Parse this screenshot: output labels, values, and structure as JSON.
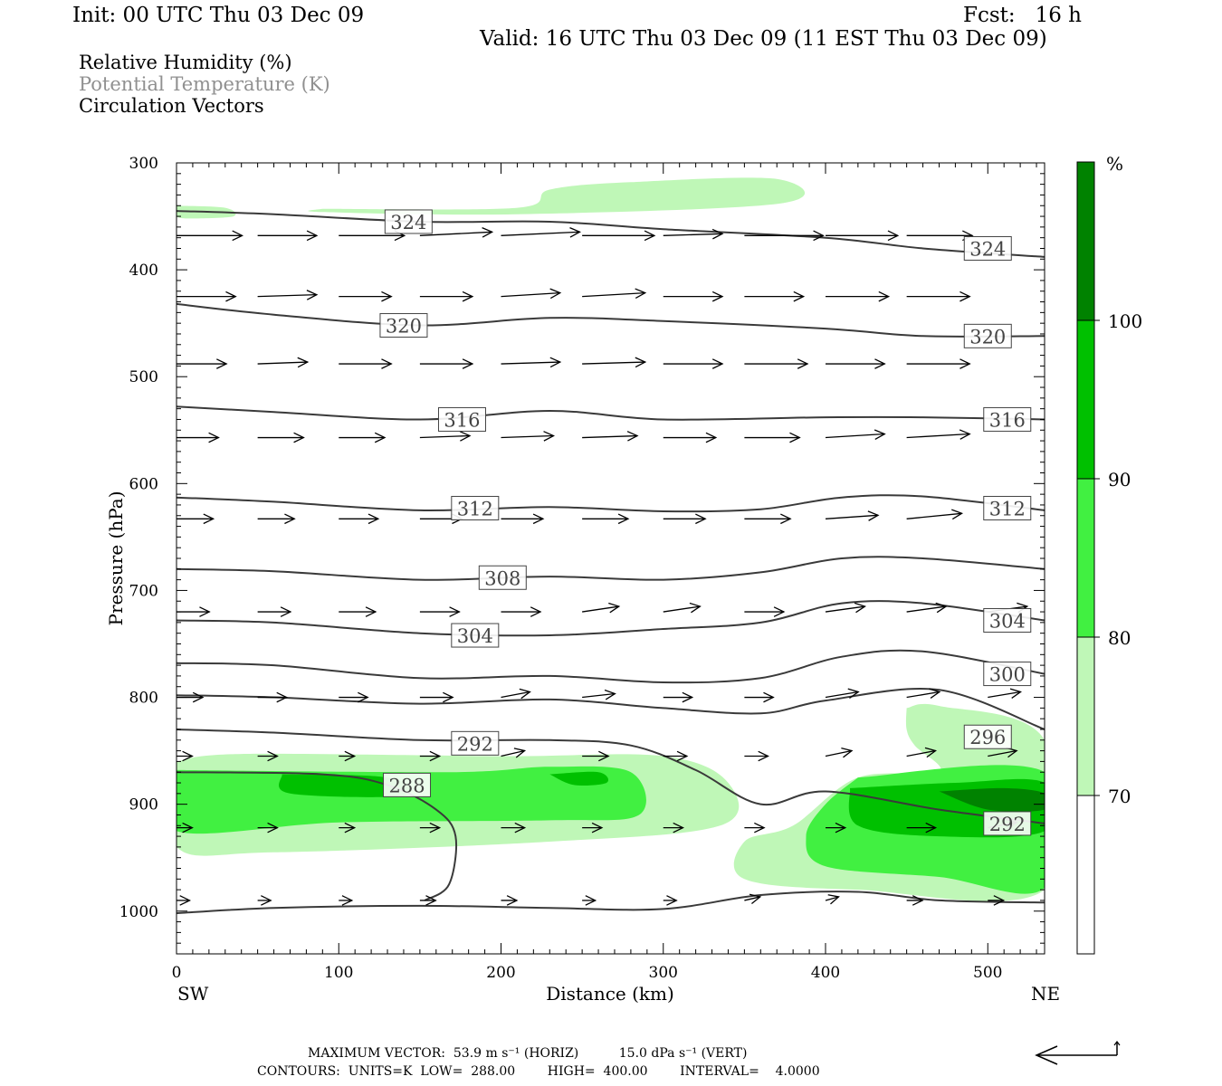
{
  "header": {
    "init": "Init: 00 UTC Thu 03 Dec 09",
    "fcst": "Fcst:   16 h",
    "valid": "Valid: 16 UTC Thu 03 Dec 09 (11 EST Thu 03 Dec 09)"
  },
  "legend": {
    "rh": "Relative Humidity (%)",
    "pt": "Potential Temperature (K)",
    "cv": "Circulation Vectors"
  },
  "footer": {
    "max_vector": "MAXIMUM VECTOR:  53.9 m s⁻¹ (HORIZ)          15.0 dPa s⁻¹ (VERT)",
    "contours": "CONTOURS:  UNITS=K  LOW=  288.00        HIGH=  400.00        INTERVAL=    4.0000"
  },
  "colors": {
    "rh_70_80": "#bff7b7",
    "rh_80_90": "#41f041",
    "rh_90_100": "#00c000",
    "rh_100": "#008200",
    "theta_line": "#3a3a3a",
    "vector": "#000000",
    "legend_gray": "#909090"
  },
  "chart_data": {
    "type": "cross-section",
    "xlabel": "Distance (km)",
    "ylabel": "Pressure (hPa)",
    "xlim": [
      0,
      535
    ],
    "ylim": [
      1040,
      300
    ],
    "x_ticks": [
      0,
      100,
      200,
      300,
      400,
      500
    ],
    "y_ticks": [
      300,
      400,
      500,
      600,
      700,
      800,
      900,
      1000
    ],
    "endpoints": {
      "left": "SW",
      "right": "NE"
    },
    "colorbar": {
      "unit": "%",
      "levels": [
        70,
        80,
        90,
        100
      ],
      "colors": [
        "#ffffff",
        "#bff7b7",
        "#41f041",
        "#00c000",
        "#008200"
      ]
    },
    "theta_contours": [
      {
        "label": "324",
        "points": [
          [
            0,
            345
          ],
          [
            60,
            348
          ],
          [
            150,
            355
          ],
          [
            230,
            355
          ],
          [
            300,
            362
          ],
          [
            400,
            370
          ],
          [
            460,
            380
          ],
          [
            535,
            388
          ]
        ]
      },
      {
        "label": "320",
        "points": [
          [
            0,
            432
          ],
          [
            60,
            442
          ],
          [
            150,
            452
          ],
          [
            230,
            445
          ],
          [
            300,
            448
          ],
          [
            400,
            455
          ],
          [
            460,
            462
          ],
          [
            535,
            462
          ]
        ]
      },
      {
        "label": "316",
        "points": [
          [
            0,
            528
          ],
          [
            60,
            533
          ],
          [
            150,
            540
          ],
          [
            230,
            532
          ],
          [
            300,
            540
          ],
          [
            400,
            538
          ],
          [
            460,
            538
          ],
          [
            535,
            540
          ]
        ]
      },
      {
        "label": "312",
        "points": [
          [
            0,
            613
          ],
          [
            60,
            617
          ],
          [
            150,
            625
          ],
          [
            230,
            622
          ],
          [
            300,
            626
          ],
          [
            360,
            624
          ],
          [
            410,
            613
          ],
          [
            460,
            612
          ],
          [
            535,
            625
          ]
        ]
      },
      {
        "label": "308",
        "points": [
          [
            0,
            680
          ],
          [
            60,
            682
          ],
          [
            150,
            690
          ],
          [
            230,
            687
          ],
          [
            300,
            690
          ],
          [
            360,
            683
          ],
          [
            410,
            670
          ],
          [
            460,
            670
          ],
          [
            535,
            680
          ]
        ]
      },
      {
        "label": "304",
        "points": [
          [
            0,
            728
          ],
          [
            60,
            730
          ],
          [
            150,
            740
          ],
          [
            230,
            742
          ],
          [
            300,
            736
          ],
          [
            360,
            730
          ],
          [
            410,
            712
          ],
          [
            460,
            712
          ],
          [
            535,
            728
          ]
        ]
      },
      {
        "label": "300",
        "points": [
          [
            0,
            768
          ],
          [
            60,
            770
          ],
          [
            150,
            782
          ],
          [
            230,
            780
          ],
          [
            300,
            786
          ],
          [
            360,
            782
          ],
          [
            410,
            762
          ],
          [
            460,
            757
          ],
          [
            535,
            778
          ]
        ]
      },
      {
        "label": "296",
        "points": [
          [
            0,
            798
          ],
          [
            60,
            800
          ],
          [
            150,
            806
          ],
          [
            230,
            802
          ],
          [
            300,
            810
          ],
          [
            360,
            815
          ],
          [
            400,
            803
          ],
          [
            470,
            793
          ],
          [
            535,
            830
          ]
        ]
      },
      {
        "label": "292",
        "points": [
          [
            0,
            830
          ],
          [
            60,
            833
          ],
          [
            150,
            840
          ],
          [
            230,
            840
          ],
          [
            280,
            845
          ],
          [
            320,
            868
          ],
          [
            360,
            900
          ],
          [
            400,
            888
          ],
          [
            470,
            905
          ],
          [
            535,
            918
          ]
        ]
      },
      {
        "label": "288",
        "points": [
          [
            0,
            870
          ],
          [
            90,
            872
          ],
          [
            130,
            882
          ],
          [
            160,
            905
          ],
          [
            172,
            930
          ],
          [
            168,
            975
          ],
          [
            153,
            990
          ]
        ]
      },
      {
        "label": "",
        "points": [
          [
            0,
            1002
          ],
          [
            60,
            997
          ],
          [
            150,
            995
          ],
          [
            230,
            997
          ],
          [
            300,
            998
          ],
          [
            360,
            985
          ],
          [
            420,
            982
          ],
          [
            470,
            990
          ],
          [
            535,
            992
          ]
        ]
      }
    ],
    "rh_regions": [
      {
        "level": "70-80",
        "points": [
          [
            0,
            340
          ],
          [
            30,
            342
          ],
          [
            35,
            350
          ],
          [
            10,
            352
          ],
          [
            0,
            350
          ]
        ]
      },
      {
        "level": "70-80",
        "points": [
          [
            90,
            343
          ],
          [
            210,
            342
          ],
          [
            230,
            325
          ],
          [
            280,
            318
          ],
          [
            370,
            315
          ],
          [
            372,
            338
          ],
          [
            210,
            348
          ],
          [
            90,
            346
          ]
        ]
      },
      {
        "level": "70-80",
        "points": [
          [
            0,
            860
          ],
          [
            40,
            853
          ],
          [
            200,
            855
          ],
          [
            300,
            855
          ],
          [
            340,
            880
          ],
          [
            335,
            920
          ],
          [
            230,
            935
          ],
          [
            60,
            945
          ],
          [
            0,
            940
          ]
        ]
      },
      {
        "level": "70-80",
        "points": [
          [
            450,
            810
          ],
          [
            470,
            808
          ],
          [
            535,
            840
          ],
          [
            535,
            980
          ],
          [
            420,
            980
          ],
          [
            350,
            970
          ],
          [
            350,
            935
          ],
          [
            380,
            920
          ],
          [
            420,
            875
          ],
          [
            470,
            870
          ],
          [
            455,
            845
          ],
          [
            450,
            830
          ]
        ]
      },
      {
        "level": "80-90",
        "points": [
          [
            0,
            868
          ],
          [
            170,
            870
          ],
          [
            230,
            865
          ],
          [
            280,
            870
          ],
          [
            285,
            910
          ],
          [
            230,
            915
          ],
          [
            100,
            917
          ],
          [
            0,
            925
          ]
        ]
      },
      {
        "level": "80-90",
        "points": [
          [
            420,
            875
          ],
          [
            535,
            870
          ],
          [
            535,
            978
          ],
          [
            470,
            968
          ],
          [
            400,
            958
          ],
          [
            388,
            930
          ],
          [
            400,
            900
          ]
        ]
      },
      {
        "level": "90-100",
        "points": [
          [
            65,
            872
          ],
          [
            130,
            875
          ],
          [
            140,
            892
          ],
          [
            70,
            890
          ]
        ]
      },
      {
        "level": "90-100",
        "points": [
          [
            230,
            872
          ],
          [
            260,
            870
          ],
          [
            265,
            880
          ],
          [
            245,
            882
          ]
        ]
      },
      {
        "level": "90-100",
        "points": [
          [
            415,
            885
          ],
          [
            480,
            880
          ],
          [
            535,
            880
          ],
          [
            535,
            925
          ],
          [
            470,
            930
          ],
          [
            420,
            920
          ]
        ]
      },
      {
        "level": "100",
        "points": [
          [
            470,
            888
          ],
          [
            510,
            885
          ],
          [
            535,
            890
          ],
          [
            535,
            905
          ],
          [
            500,
            905
          ]
        ]
      }
    ],
    "vector_rows": [
      {
        "pressure": 368,
        "u": [
          50,
          45,
          50,
          55,
          60,
          55,
          45,
          60,
          55,
          50,
          50
        ],
        "v": [
          0,
          0,
          0,
          -2,
          -2,
          0,
          -1,
          0,
          0,
          0,
          -1
        ]
      },
      {
        "pressure": 425,
        "u": [
          45,
          45,
          40,
          40,
          45,
          48,
          45,
          45,
          48,
          48,
          50
        ],
        "v": [
          0,
          -1,
          0,
          0,
          -2,
          -2,
          0,
          0,
          0,
          0,
          -1
        ]
      },
      {
        "pressure": 488,
        "u": [
          38,
          38,
          40,
          40,
          45,
          48,
          45,
          48,
          45,
          48,
          52
        ],
        "v": [
          0,
          -1,
          0,
          0,
          -1,
          -1,
          0,
          0,
          0,
          0,
          -2
        ]
      },
      {
        "pressure": 557,
        "u": [
          32,
          35,
          35,
          38,
          40,
          42,
          40,
          42,
          45,
          48,
          50
        ],
        "v": [
          0,
          0,
          0,
          -1,
          -1,
          -1,
          0,
          0,
          -2,
          -2,
          -2
        ]
      },
      {
        "pressure": 633,
        "u": [
          28,
          28,
          30,
          32,
          32,
          35,
          32,
          35,
          40,
          42,
          45
        ],
        "v": [
          0,
          0,
          0,
          0,
          0,
          0,
          0,
          0,
          -2,
          -3,
          -3
        ]
      },
      {
        "pressure": 720,
        "u": [
          25,
          25,
          28,
          30,
          30,
          28,
          28,
          30,
          30,
          30,
          30
        ],
        "v": [
          0,
          0,
          0,
          0,
          0,
          -3,
          -3,
          0,
          -3,
          -3,
          -3
        ]
      },
      {
        "pressure": 800,
        "u": [
          20,
          22,
          22,
          25,
          22,
          25,
          22,
          22,
          25,
          25,
          25
        ],
        "v": [
          0,
          0,
          0,
          0,
          -3,
          -2,
          0,
          0,
          -3,
          -3,
          -3
        ]
      },
      {
        "pressure": 855,
        "u": [
          12,
          15,
          12,
          15,
          18,
          20,
          18,
          18,
          20,
          22,
          22
        ],
        "v": [
          0,
          0,
          0,
          0,
          -3,
          0,
          0,
          0,
          -3,
          -3,
          -3
        ]
      },
      {
        "pressure": 922,
        "u": [
          12,
          15,
          12,
          15,
          18,
          15,
          15,
          15,
          15,
          22,
          22
        ],
        "v": [
          0,
          0,
          0,
          0,
          0,
          0,
          0,
          0,
          0,
          0,
          -3
        ]
      },
      {
        "pressure": 990,
        "u": [
          10,
          10,
          10,
          12,
          12,
          10,
          10,
          12,
          10,
          12,
          12
        ],
        "v": [
          0,
          0,
          0,
          0,
          0,
          0,
          0,
          -2,
          -2,
          0,
          0
        ]
      }
    ],
    "vector_x": [
      0,
      50,
      100,
      150,
      200,
      250,
      300,
      350,
      400,
      450,
      500
    ]
  }
}
